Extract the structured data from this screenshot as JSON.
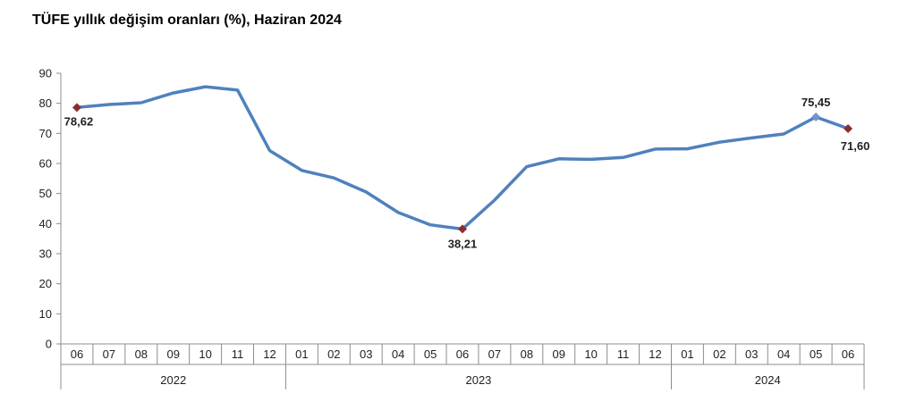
{
  "chart_data": {
    "type": "line",
    "title": "TÜFE yıllık değişim oranları (%), Haziran 2024",
    "xlabel": "",
    "ylabel": "",
    "ylim": [
      0,
      90
    ],
    "yticks": [
      0,
      10,
      20,
      30,
      40,
      50,
      60,
      70,
      80,
      90
    ],
    "grid": false,
    "legend": "none",
    "line_color": "#4f81bd",
    "marker_color": "#8b2e2e",
    "categories": [
      "06",
      "07",
      "08",
      "09",
      "10",
      "11",
      "12",
      "01",
      "02",
      "03",
      "04",
      "05",
      "06",
      "07",
      "08",
      "09",
      "10",
      "11",
      "12",
      "01",
      "02",
      "03",
      "04",
      "05",
      "06"
    ],
    "years": [
      {
        "label": "2022",
        "count": 7
      },
      {
        "label": "2023",
        "count": 12
      },
      {
        "label": "2024",
        "count": 6
      }
    ],
    "series": [
      {
        "values": [
          78.62,
          79.6,
          80.21,
          83.45,
          85.51,
          84.39,
          64.27,
          57.68,
          55.18,
          50.51,
          43.68,
          39.59,
          38.21,
          47.83,
          58.94,
          61.53,
          61.36,
          61.98,
          64.77,
          64.86,
          67.07,
          68.5,
          69.8,
          75.45,
          71.6
        ]
      }
    ],
    "data_labels": [
      {
        "index": 0,
        "text": "78,62"
      },
      {
        "index": 12,
        "text": "38,21"
      },
      {
        "index": 23,
        "text": "75,45"
      },
      {
        "index": 24,
        "text": "71,60"
      }
    ]
  }
}
